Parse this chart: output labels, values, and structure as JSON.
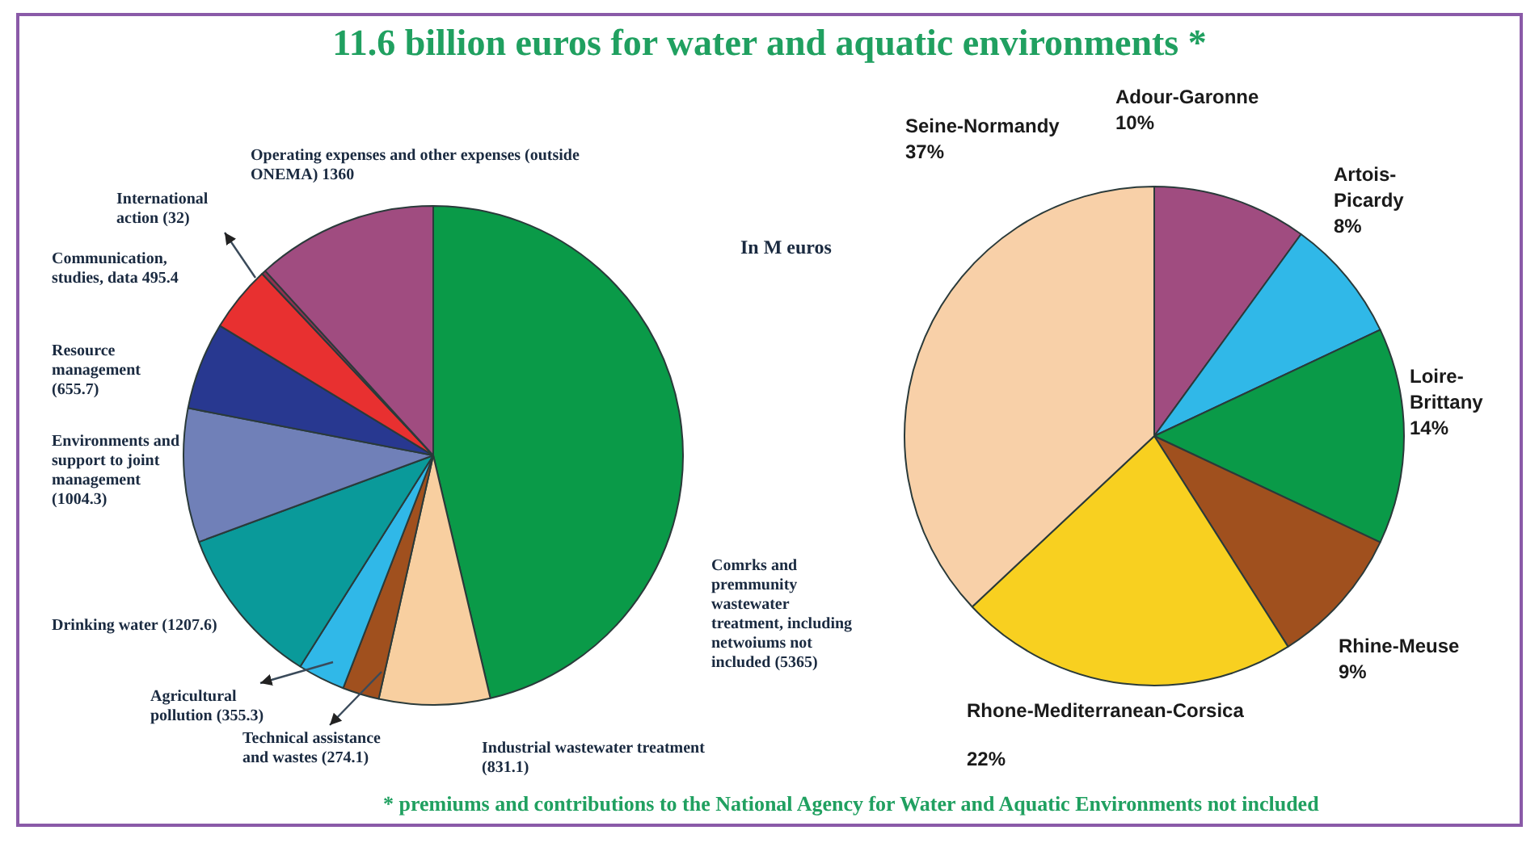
{
  "chart_data": [
    {
      "type": "pie",
      "title": "11.6 billion euros for water and aquatic environments *",
      "annotations": [
        "In M euros",
        "* premiums and contributions to the National Agency for Water and Aquatic Environments not included"
      ],
      "categories": [
        "Comrks and premmunity wastewater treatment, including netwoiums not included",
        "Industrial wastewater treatment",
        "Technical assistance and wastes",
        "Agricultural pollution",
        "Drinking water",
        "Environments and support to joint management",
        "Resource management",
        "Communication, studies, data",
        "International action",
        "Operating expenses and other expenses (outside ONEMA)"
      ],
      "values": [
        5365,
        831.1,
        274.1,
        355.3,
        1207.6,
        1004.3,
        655.7,
        495.4,
        32,
        1360
      ],
      "value_labels": [
        "(5365)",
        "(831.1)",
        "(274.1)",
        "(355.3)",
        "(1207.6)",
        "(1004.3)",
        "(655.7)",
        "495.4",
        "(32)",
        "1360"
      ],
      "colors": [
        "#0a9a48",
        "#f8cfa0",
        "#a0501e",
        "#30b8e8",
        "#0a9a9a",
        "#7080b8",
        "#283890",
        "#e83030",
        "#903050",
        "#a04c80"
      ],
      "legend": false
    },
    {
      "type": "pie",
      "categories": [
        "Adour-Garonne",
        "Artois-Picardy",
        "Loire-Brittany",
        "Rhine-Meuse",
        "Rhone-Mediterranean-Corsica",
        "Seine-Normandy"
      ],
      "values": [
        10,
        8,
        14,
        9,
        22,
        37
      ],
      "value_labels": [
        "10%",
        "8%",
        "14%",
        "9%",
        "22%",
        "37%"
      ],
      "colors": [
        "#a04c80",
        "#30b8e8",
        "#0a9a48",
        "#a0501e",
        "#f8d020",
        "#f8d0a8"
      ],
      "legend": false
    }
  ]
}
